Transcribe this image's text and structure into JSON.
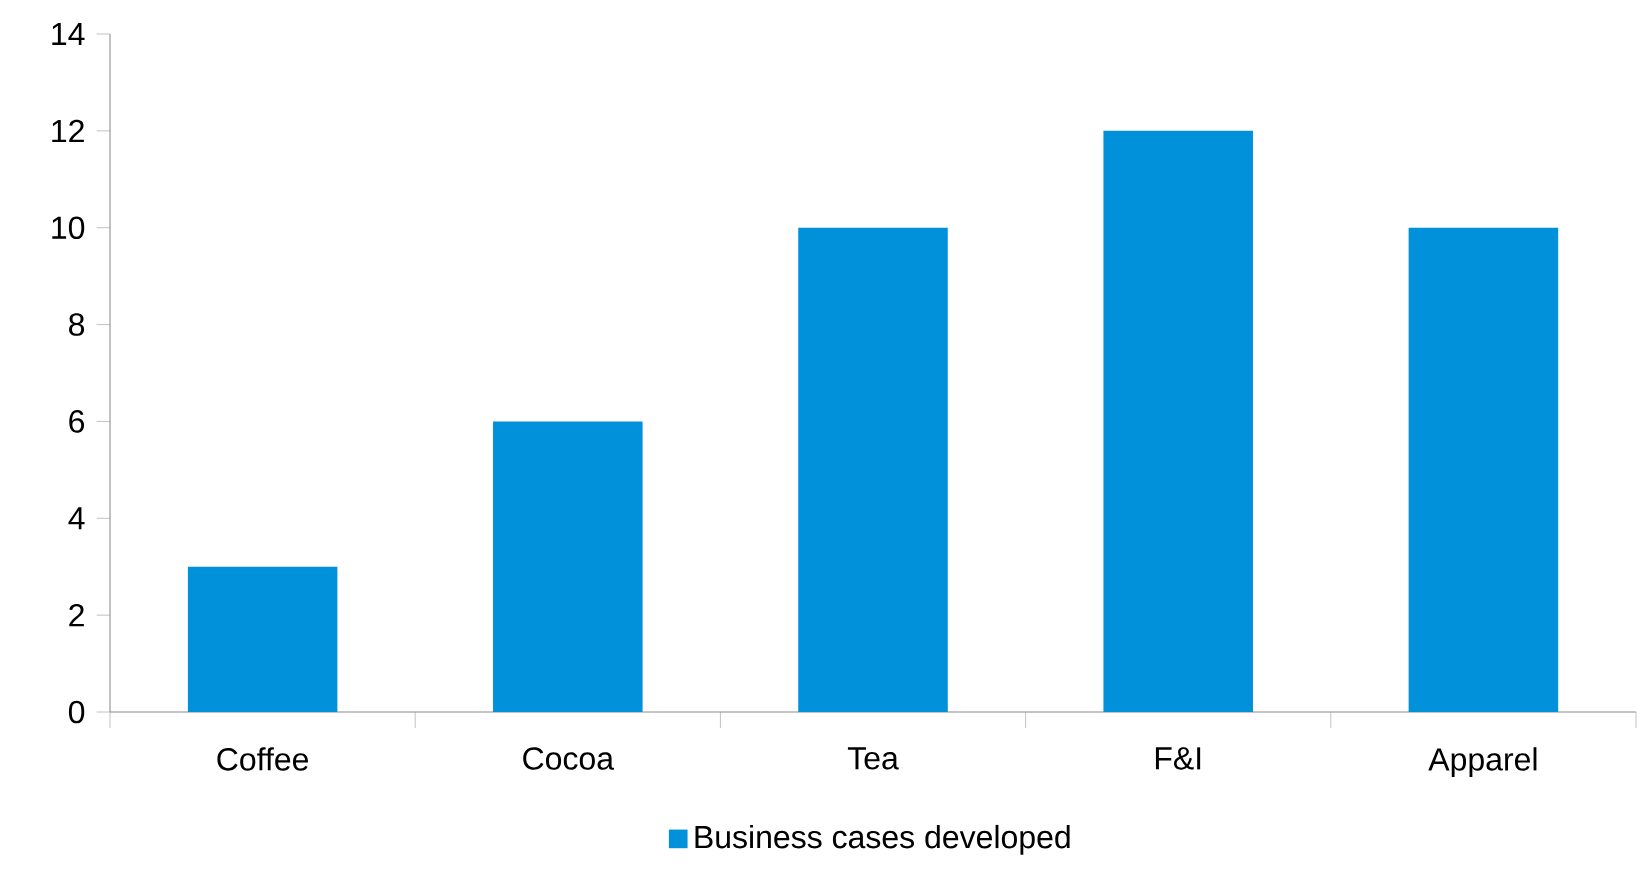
{
  "chart_data": {
    "type": "bar",
    "categories": [
      "Coffee",
      "Cocoa",
      "Tea",
      "F&I",
      "Apparel"
    ],
    "series": [
      {
        "name": "Business cases developed",
        "color": "#0091da",
        "values": [
          3,
          6,
          10,
          12,
          10
        ]
      }
    ],
    "ylim": [
      0,
      14
    ],
    "yticks": [
      0,
      2,
      4,
      6,
      8,
      10,
      12,
      14
    ],
    "grid": false,
    "legend": "bottom"
  }
}
